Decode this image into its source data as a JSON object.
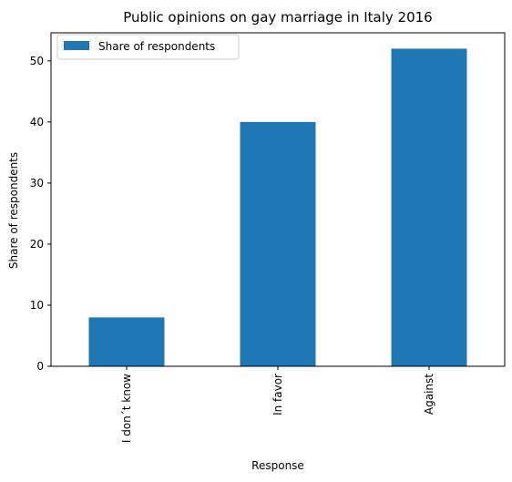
{
  "chart_data": {
    "type": "bar",
    "title": "Public opinions on gay marriage in Italy 2016",
    "xlabel": "Response",
    "ylabel": "Share of respondents",
    "categories": [
      "I don´t know",
      "In favor",
      "Against"
    ],
    "series": [
      {
        "name": "Share of respondents",
        "values": [
          8,
          40,
          52
        ],
        "color": "#1f77b4"
      }
    ],
    "ylim": [
      0,
      54.6
    ],
    "yticks": [
      0,
      10,
      20,
      30,
      40,
      50
    ],
    "grid": false,
    "legend_position": "top-left"
  }
}
